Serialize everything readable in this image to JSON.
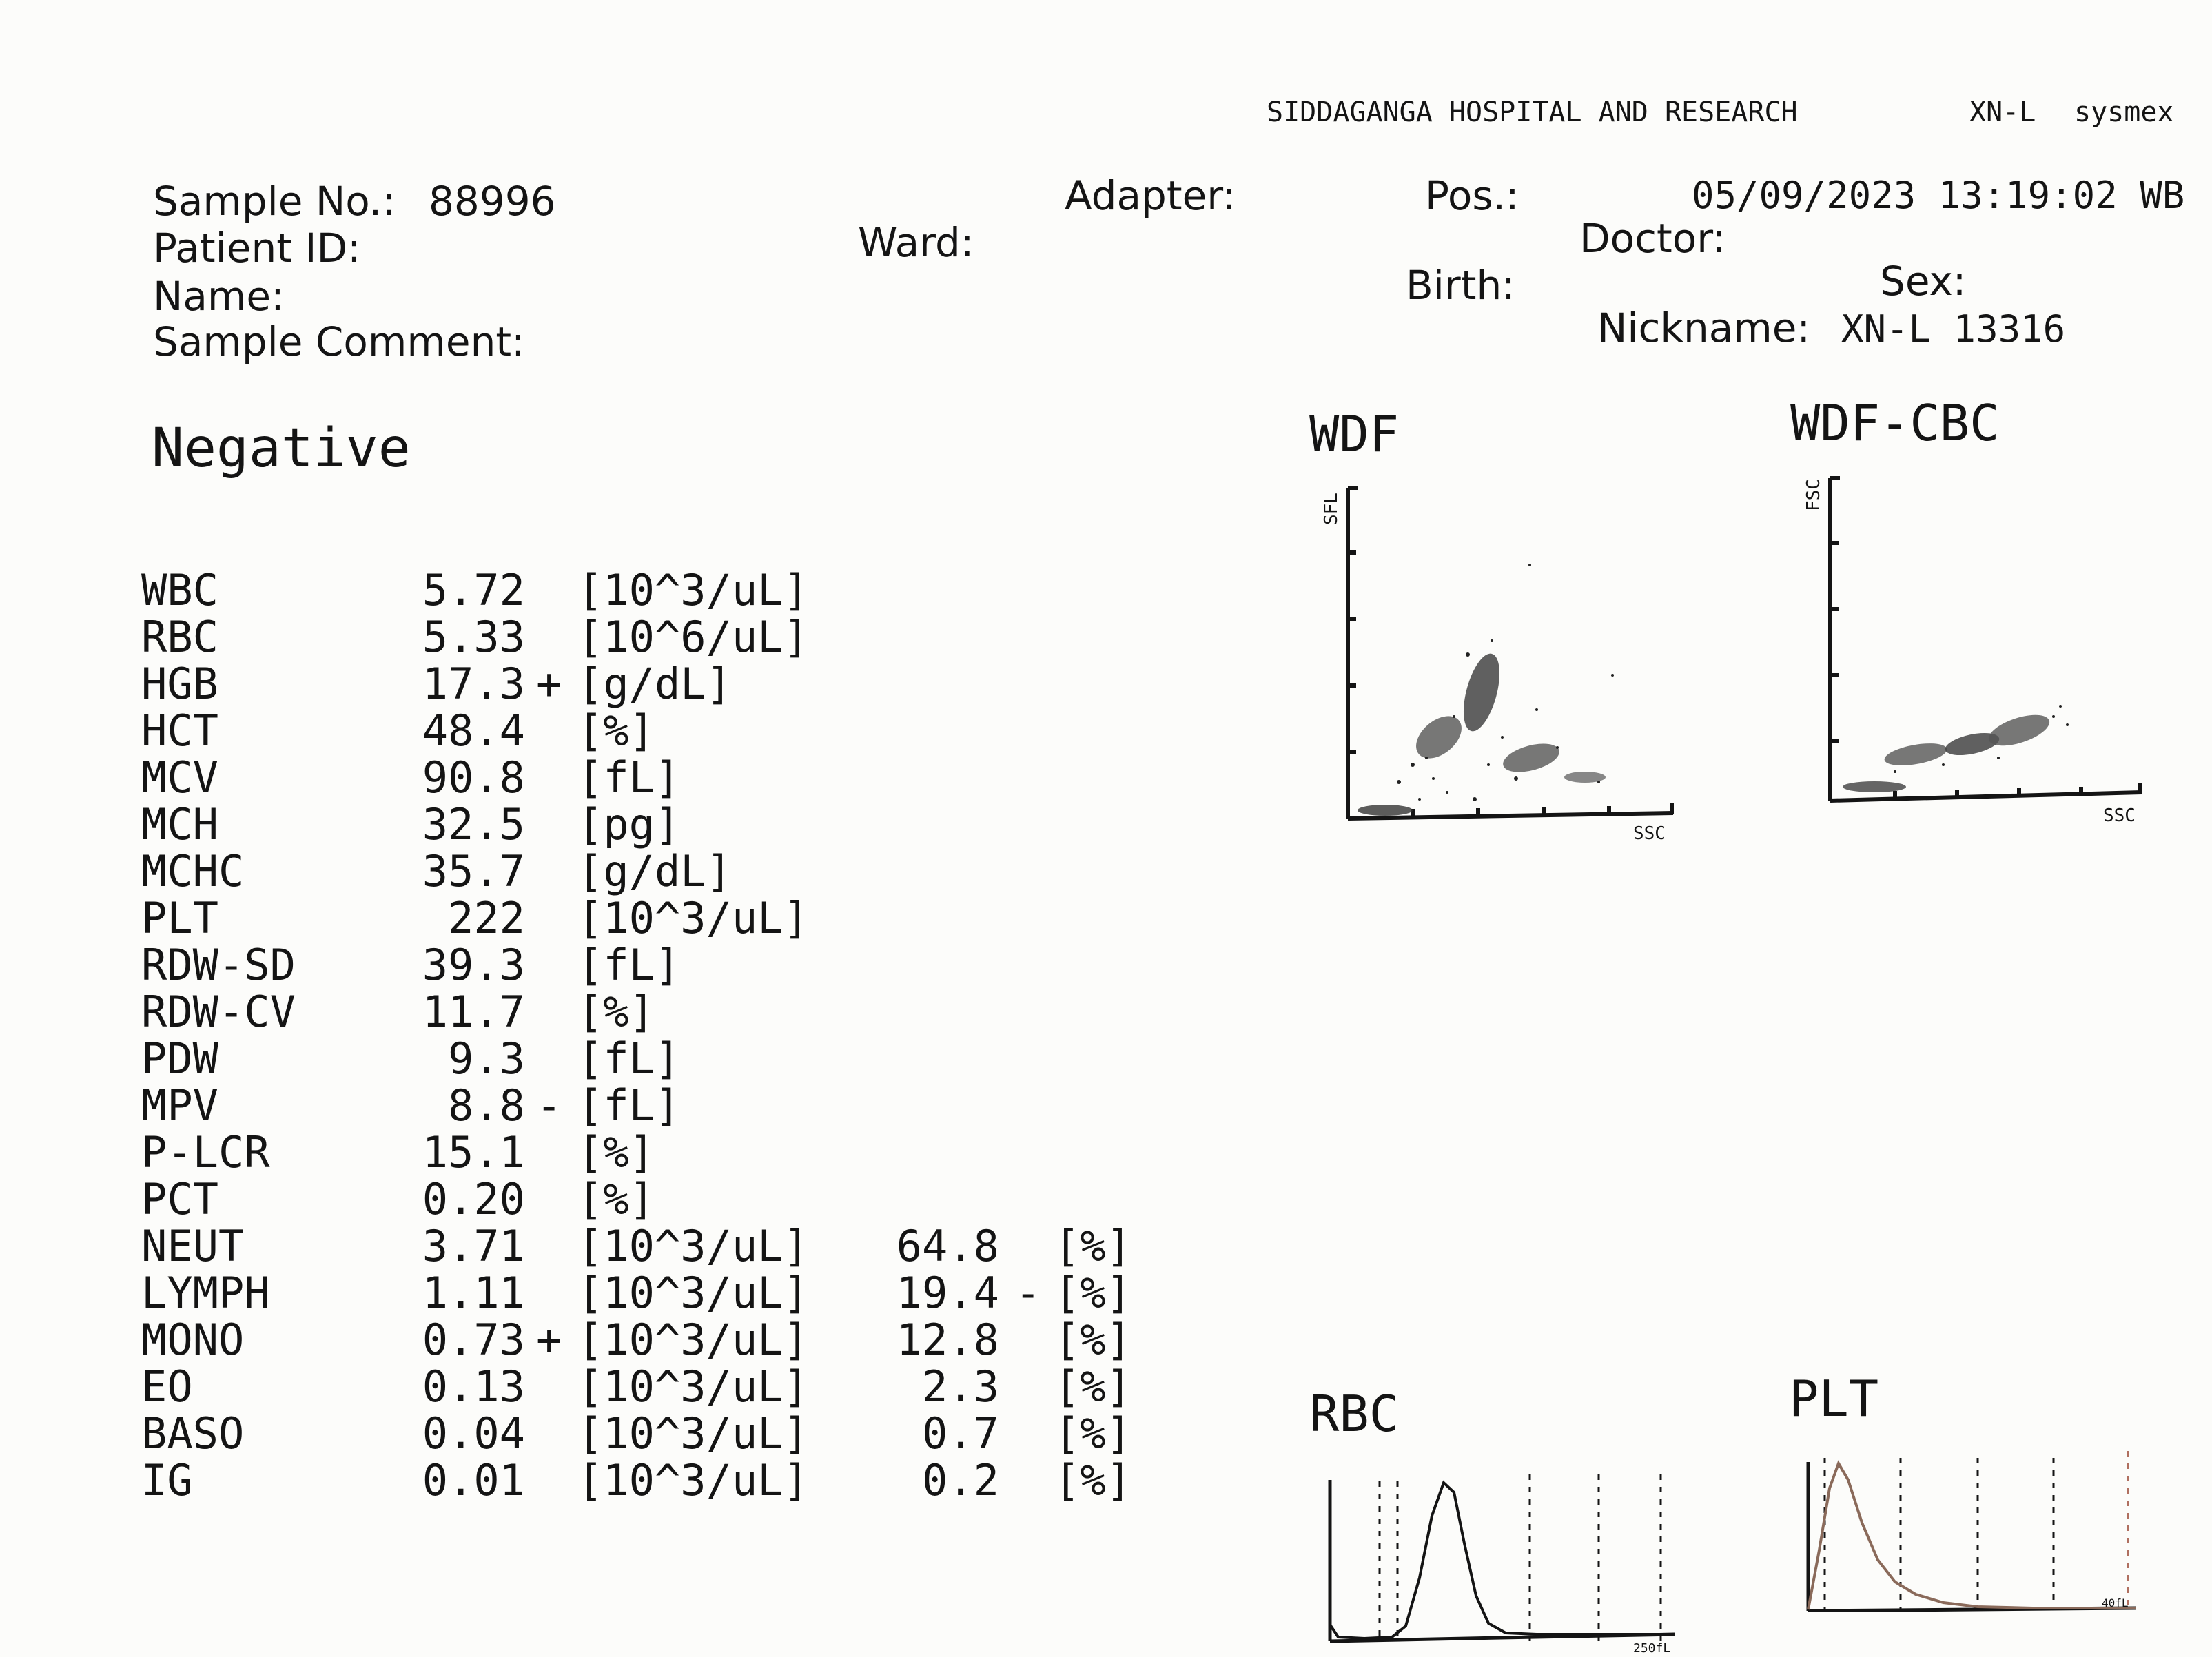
{
  "header": {
    "institution": "SIDDAGANGA HOSPITAL AND RESEARCH",
    "analyzer": "XN-L",
    "brand": "sysmex"
  },
  "sample": {
    "sample_no_label": "Sample No.:",
    "sample_no": "88996",
    "patient_id_label": "Patient ID:",
    "name_label": "Name:",
    "comment_label": "Sample Comment:",
    "ward_label": "Ward:",
    "adapter_label": "Adapter:",
    "pos_label": "Pos.:",
    "datetime": "05/09/2023 13:19:02 WB",
    "doctor_label": "Doctor:",
    "birth_label": "Birth:",
    "sex_label": "Sex:",
    "nickname_label": "Nickname:",
    "nickname": "XN-L 13316"
  },
  "judgment": "Negative",
  "results": [
    {
      "name": "WBC",
      "value": "5.72",
      "flag": "",
      "unit": "[10^3/uL]"
    },
    {
      "name": "RBC",
      "value": "5.33",
      "flag": "",
      "unit": "[10^6/uL]"
    },
    {
      "name": "HGB",
      "value": "17.3",
      "flag": "+",
      "unit": "[g/dL]"
    },
    {
      "name": "HCT",
      "value": "48.4",
      "flag": "",
      "unit": "[%]"
    },
    {
      "name": "MCV",
      "value": "90.8",
      "flag": "",
      "unit": "[fL]"
    },
    {
      "name": "MCH",
      "value": "32.5",
      "flag": "",
      "unit": "[pg]"
    },
    {
      "name": "MCHC",
      "value": "35.7",
      "flag": "",
      "unit": "[g/dL]"
    },
    {
      "name": "PLT",
      "value": "222",
      "flag": "",
      "unit": "[10^3/uL]"
    },
    {
      "name": "RDW-SD",
      "value": "39.3",
      "flag": "",
      "unit": "[fL]"
    },
    {
      "name": "RDW-CV",
      "value": "11.7",
      "flag": "",
      "unit": "[%]"
    },
    {
      "name": "PDW",
      "value": "9.3",
      "flag": "",
      "unit": "[fL]"
    },
    {
      "name": "MPV",
      "value": "8.8",
      "flag": "-",
      "unit": "[fL]"
    },
    {
      "name": "P-LCR",
      "value": "15.1",
      "flag": "",
      "unit": "[%]"
    },
    {
      "name": "PCT",
      "value": "0.20",
      "flag": "",
      "unit": "[%]"
    },
    {
      "name": "NEUT",
      "value": "3.71",
      "flag": "",
      "unit": "[10^3/uL]",
      "pct": "64.8",
      "pflag": "",
      "punit": "[%]"
    },
    {
      "name": "LYMPH",
      "value": "1.11",
      "flag": "",
      "unit": "[10^3/uL]",
      "pct": "19.4",
      "pflag": "-",
      "punit": "[%]"
    },
    {
      "name": "MONO",
      "value": "0.73",
      "flag": "+",
      "unit": "[10^3/uL]",
      "pct": "12.8",
      "pflag": "",
      "punit": "[%]"
    },
    {
      "name": "EO",
      "value": "0.13",
      "flag": "",
      "unit": "[10^3/uL]",
      "pct": "2.3",
      "pflag": "",
      "punit": "[%]"
    },
    {
      "name": "BASO",
      "value": "0.04",
      "flag": "",
      "unit": "[10^3/uL]",
      "pct": "0.7",
      "pflag": "",
      "punit": "[%]"
    },
    {
      "name": "IG",
      "value": "0.01",
      "flag": "",
      "unit": "[10^3/uL]",
      "pct": "0.2",
      "pflag": "",
      "punit": "[%]"
    }
  ],
  "plots": {
    "wdf": {
      "title": "WDF",
      "xlabel": "SSC",
      "ylabel": "SFL"
    },
    "wdf_cbc": {
      "title": "WDF-CBC",
      "xlabel": "SSC",
      "ylabel": "FSC"
    },
    "rbc_hist": {
      "title": "RBC",
      "xmax_label": "250fL"
    },
    "plt_hist": {
      "title": "PLT",
      "xmax_label": "40fL"
    }
  },
  "colors": {
    "ink": "#141414",
    "paper": "#fcfcfa",
    "curve_plt": "#8a6a5a"
  }
}
